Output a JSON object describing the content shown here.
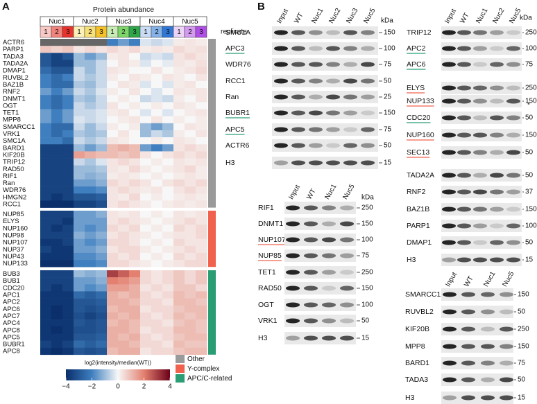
{
  "panel_labels": [
    "A",
    "B"
  ],
  "chart_data": {
    "type": "heatmap",
    "title": "Protein abundance",
    "x_groups": [
      {
        "name": "Nuc1",
        "colors": [
          "#f8c9c4",
          "#f2837c",
          "#e8322c"
        ]
      },
      {
        "name": "Nuc2",
        "colors": [
          "#fbf1b8",
          "#f7e07a",
          "#f4c12b"
        ]
      },
      {
        "name": "Nuc3",
        "colors": [
          "#c8ecb4",
          "#7ed66a",
          "#2ea64a"
        ]
      },
      {
        "name": "Nuc4",
        "colors": [
          "#c9dcf4",
          "#84b2e8",
          "#2f78d8"
        ]
      },
      {
        "name": "Nuc5",
        "colors": [
          "#ecd4f7",
          "#d39af0",
          "#b14ee8"
        ]
      }
    ],
    "replicates": [
      1,
      2,
      3
    ],
    "replicate_label": "replicate",
    "na_color": "#666666",
    "row_groups": [
      {
        "name": "Other",
        "color": "#9a9a9a",
        "rows": [
          "ACTR6",
          "PARP1",
          "TADA3",
          "TADA2A",
          "DMAP1",
          "RUVBL2",
          "BAZ1B",
          "RNF2",
          "DNMT1",
          "OGT",
          "TET1",
          "MPP8",
          "SMARCC1",
          "VRK1",
          "SMC1A",
          "BARD1",
          "KIF20B",
          "TRIP12",
          "RAD50",
          "RIF1",
          "Ran",
          "WDR76",
          "HMGN2",
          "RCC1"
        ],
        "values": [
          [
            null,
            null,
            null,
            null,
            null,
            null,
            -2,
            -1.5,
            -2,
            -0.3,
            -0.5,
            -0.3,
            0.2,
            0.3,
            0.2
          ],
          [
            0.8,
            0.6,
            0.8,
            0.3,
            0.5,
            0.3,
            0.5,
            0.3,
            0.5,
            0.2,
            0.3,
            0.2,
            0.5,
            0.3,
            0.4
          ],
          [
            -3,
            -3.5,
            -3,
            -1,
            -1.5,
            -1,
            0.2,
            0.3,
            0,
            -0.5,
            -0.3,
            -0.5,
            0.3,
            0.5,
            0.3
          ],
          [
            -3,
            -3.5,
            -3.5,
            -1,
            -1,
            -0.5,
            0,
            0.3,
            0.2,
            -0.3,
            0,
            -0.2,
            0.3,
            0.2,
            0.4
          ],
          [
            -2.5,
            -3,
            -3,
            -0.5,
            -1,
            -0.5,
            0.3,
            0.2,
            0,
            0,
            0.3,
            0,
            0.2,
            0.3,
            0.5
          ],
          [
            -2,
            -2.5,
            -2,
            -0.5,
            -0.8,
            -0.5,
            0.2,
            0,
            0.3,
            0.2,
            0,
            0.3,
            0.2,
            0,
            0.3
          ],
          [
            -2,
            -2.5,
            -2.5,
            -0.8,
            -1,
            -0.5,
            0,
            0.3,
            0.2,
            -0.3,
            0,
            -0.3,
            0.2,
            0.3,
            0
          ],
          [
            -1.5,
            -2,
            -1.5,
            -0.5,
            -0.8,
            -0.3,
            0.2,
            0,
            0.3,
            0,
            -0.3,
            0,
            0.3,
            0.2,
            0.3
          ],
          [
            -2,
            -2.5,
            -2,
            -0.8,
            -1,
            -0.5,
            0,
            0.2,
            0,
            -0.5,
            -0.3,
            -0.5,
            0.2,
            0,
            0.3
          ],
          [
            -2,
            -2.5,
            -2,
            -0.5,
            -0.8,
            -0.5,
            0.3,
            0,
            0.2,
            0,
            0.2,
            0,
            0.3,
            0.2,
            0
          ],
          [
            -1.5,
            -2,
            -1.5,
            -0.5,
            -0.5,
            -0.3,
            0.2,
            0.3,
            0,
            -0.3,
            0,
            -0.3,
            0,
            0.2,
            0.3
          ],
          [
            -1.5,
            -2,
            -1.5,
            -0.3,
            -0.5,
            -0.3,
            0,
            0.2,
            0.3,
            0,
            0.3,
            0,
            0.2,
            0,
            0.2
          ],
          [
            -2,
            -2.5,
            -2.5,
            -0.5,
            -1,
            -0.5,
            0.2,
            0,
            0.2,
            -1,
            -1.5,
            -1,
            0,
            0.3,
            0.2
          ],
          [
            -2,
            -2.5,
            -2,
            -0.8,
            -1,
            -0.8,
            0,
            0.3,
            0,
            -1,
            -0.5,
            -0.8,
            0.2,
            0,
            0.3
          ],
          [
            -2,
            -2,
            -2.5,
            -0.5,
            -0.8,
            -0.5,
            0.3,
            0.2,
            0,
            0,
            0.2,
            0,
            0.3,
            0.2,
            0
          ],
          [
            -3.5,
            -3.5,
            -3.5,
            -1,
            -1.5,
            -1,
            1,
            1.2,
            1,
            -1.5,
            -2,
            -1.5,
            0.3,
            0.5,
            0.3
          ],
          [
            -3.5,
            -3.5,
            -3.5,
            1.5,
            1.2,
            1,
            1,
            0.8,
            1,
            0.3,
            0,
            0.3,
            0.5,
            0.3,
            0.5
          ],
          [
            -3.5,
            -3.5,
            -3.5,
            -0.5,
            -0.8,
            -0.3,
            0.3,
            0.5,
            0.3,
            0,
            0.2,
            0,
            0.3,
            0.2,
            0.3
          ],
          [
            -3.5,
            -3.5,
            -3.5,
            -1,
            -1,
            -0.8,
            0.3,
            0.2,
            0.5,
            0.2,
            0,
            0.2,
            0.3,
            0.5,
            0.2
          ],
          [
            -3.5,
            -3.5,
            -3.5,
            -1,
            -1.2,
            -1,
            0.2,
            0.3,
            0.2,
            0,
            0.2,
            0,
            0.2,
            0.3,
            0.2
          ],
          [
            -3.5,
            -3.5,
            -3.5,
            -1.5,
            -1.5,
            -1.2,
            0.5,
            0.3,
            0.5,
            0.3,
            0,
            0.3,
            0.5,
            0.3,
            0.5
          ],
          [
            -3.5,
            -3.5,
            -3.5,
            -2,
            -2,
            -1.8,
            0.3,
            0.5,
            0.3,
            0.2,
            0.3,
            0,
            0.3,
            0.5,
            0.3
          ],
          [
            -3.5,
            -3.8,
            -3.5,
            -3,
            -3,
            -2.8,
            0.3,
            0.2,
            0.5,
            0,
            0.2,
            0,
            0.2,
            0.3,
            0.2
          ],
          [
            -4,
            -4,
            -4,
            -3.5,
            -3.5,
            -3.2,
            0.3,
            0.5,
            0.3,
            0.2,
            0,
            0.2,
            0.3,
            0.2,
            0.3
          ]
        ]
      },
      {
        "name": "Y-complex",
        "color": "#f0624d",
        "rows": [
          "NUP85",
          "ELYS",
          "NUP160",
          "NUP98",
          "NUP107",
          "NUP37",
          "NUP43",
          "NUP133"
        ],
        "values": [
          [
            -3.5,
            -3.5,
            -3.5,
            -1.5,
            -1.5,
            -1.2,
            0.3,
            0.2,
            0.3,
            0,
            0.2,
            0,
            0.3,
            0.2,
            0.3
          ],
          [
            -3.5,
            -3.5,
            -3.8,
            -1.5,
            -1.5,
            -1.5,
            0.3,
            0.5,
            0.3,
            0.2,
            0,
            0.2,
            0.3,
            0.5,
            0.3
          ],
          [
            -3.5,
            -3.8,
            -3.5,
            -1.5,
            -1.8,
            -1.5,
            0.5,
            0.3,
            0.5,
            0,
            0.2,
            0,
            0.5,
            0.3,
            0.5
          ],
          [
            -3.5,
            -3.5,
            -3.5,
            -1.2,
            -1.5,
            -1.2,
            0.3,
            0.5,
            0.3,
            0.2,
            0,
            0.2,
            0.3,
            0.3,
            0.5
          ],
          [
            -3.8,
            -3.8,
            -3.5,
            -1.5,
            -1.8,
            -1.5,
            0.5,
            0.5,
            0.3,
            0,
            0.2,
            0,
            0.5,
            0.3,
            0.3
          ],
          [
            -3.5,
            -3.8,
            -3.8,
            -1.5,
            -1.5,
            -1.2,
            0.3,
            0.5,
            0.5,
            0.2,
            0,
            0.2,
            0.3,
            0.5,
            0.3
          ],
          [
            -3.8,
            -3.8,
            -3.8,
            -1.8,
            -1.8,
            -1.5,
            0.5,
            0.3,
            0.5,
            0,
            0.2,
            0,
            0.5,
            0.3,
            0.5
          ],
          [
            -4,
            -4,
            -4,
            -2,
            -2,
            -1.8,
            0.5,
            0.5,
            0.3,
            0.2,
            0,
            0.2,
            0.3,
            0.5,
            0.5
          ]
        ]
      },
      {
        "name": "APC/C-related",
        "color": "#2a9d74",
        "rows": [
          "BUB3",
          "BUB1",
          "CDC20",
          "APC1",
          "APC2",
          "APC6",
          "APC7",
          "APC4",
          "APC8",
          "APC5",
          "BUBR1",
          "APC8"
        ],
        "values": [
          [
            -3.5,
            -3.5,
            -3.5,
            -1,
            -1.2,
            -1,
            3,
            2.5,
            2,
            0.5,
            0.3,
            0.5,
            0.8,
            0.5,
            0.8
          ],
          [
            -3.5,
            -3.5,
            -3.5,
            -1.5,
            -1.5,
            -1.2,
            2,
            1.8,
            1.5,
            0.5,
            0.3,
            0.5,
            0.8,
            0.5,
            0.8
          ],
          [
            -3.5,
            -3.8,
            -3.5,
            -1.5,
            -1.8,
            -1.5,
            1.5,
            1.5,
            1.2,
            0.3,
            0.5,
            0.3,
            0.8,
            0.8,
            0.5
          ],
          [
            -3.8,
            -3.8,
            -3.8,
            -2.5,
            -2.8,
            -2.5,
            1.2,
            1,
            1.2,
            0.5,
            0.3,
            0.5,
            1,
            0.8,
            1
          ],
          [
            -3.8,
            -3.8,
            -3.8,
            -3,
            -3,
            -2.8,
            1.2,
            1.2,
            1,
            0.5,
            0.5,
            0.3,
            1,
            1,
            0.8
          ],
          [
            -3.8,
            -4,
            -3.8,
            -3,
            -3.2,
            -3,
            1,
            1.2,
            1.2,
            0.3,
            0.5,
            0.5,
            0.8,
            1,
            1
          ],
          [
            -3.8,
            -4,
            -3.8,
            -3.2,
            -3.5,
            -3.2,
            1.2,
            1,
            1.2,
            0.5,
            0.3,
            0.5,
            1,
            0.8,
            1
          ],
          [
            -3.8,
            -3.8,
            -3.8,
            -3,
            -3.2,
            -3,
            1,
            1.2,
            1,
            0.5,
            0.5,
            0.3,
            0.8,
            1,
            0.8
          ],
          [
            -3.8,
            -4,
            -3.8,
            -3.2,
            -3.2,
            -3,
            1.2,
            1.2,
            1,
            0.3,
            0.5,
            0.5,
            1,
            1,
            0.8
          ],
          [
            -3.8,
            -3.8,
            -3.8,
            -3,
            -3,
            -2.8,
            1.2,
            1,
            1.2,
            0.5,
            0.3,
            0.5,
            0.8,
            1,
            1
          ],
          [
            -3.5,
            -3.8,
            -3.5,
            -2.5,
            -2.8,
            -2.5,
            1.2,
            1.2,
            1,
            0.5,
            0.5,
            0.3,
            1,
            0.8,
            0.8
          ],
          [
            -3.8,
            -4,
            -3.8,
            -3,
            -3.2,
            -3,
            1,
            1.2,
            1.2,
            0.3,
            0.5,
            0.5,
            0.8,
            1,
            1
          ]
        ]
      }
    ],
    "legend_title": "log2(intensity/median(WT))",
    "zlim": [
      -4,
      4
    ],
    "zticks": [
      {
        "value": -4,
        "label": "−4"
      },
      {
        "value": -2,
        "label": "−2"
      },
      0,
      2,
      4
    ],
    "colorscale": [
      "#0a2f6b",
      "#3f7fbf",
      "#f7f7f7",
      "#e3806f",
      "#6b0019"
    ]
  },
  "blots": [
    {
      "lanes": [
        "Input",
        "WT",
        "Nuc1",
        "Nuc2",
        "Nuc3",
        "Nuc5"
      ],
      "unit": "kDa",
      "rows": [
        {
          "protein": "SMC1A",
          "marker": 150
        },
        {
          "protein": "APC3",
          "marker": 100,
          "underline": "#2a9d74"
        },
        {
          "protein": "WDR76",
          "marker": 75
        },
        {
          "protein": "RCC1",
          "marker": 50
        },
        {
          "protein": "Ran",
          "marker": 25
        },
        {
          "protein": "BUBR1",
          "marker": 150,
          "underline": "#2a9d74"
        },
        {
          "protein": "APC5",
          "marker": 75,
          "underline": "#2a9d74"
        },
        {
          "protein": "ACTR6",
          "marker": 50
        },
        {
          "protein": "H3",
          "marker": 15
        }
      ]
    },
    {
      "lanes": [
        "Input",
        "WT",
        "Nuc1",
        "Nuc5"
      ],
      "unit": "kDa",
      "rows": [
        {
          "protein": "RIF1",
          "marker": 250
        },
        {
          "protein": "DNMT1",
          "marker": 150
        },
        {
          "protein": "NUP107",
          "marker": 100,
          "underline": "#f0624d"
        },
        {
          "protein": "NUP85",
          "marker": 75,
          "underline": "#f0624d"
        },
        {
          "protein": "TET1",
          "marker": 250
        },
        {
          "protein": "RAD50",
          "marker": 150
        },
        {
          "protein": "OGT",
          "marker": 100
        },
        {
          "protein": "VRK1",
          "marker": 50
        },
        {
          "protein": "H3",
          "marker": 15
        }
      ]
    },
    {
      "lanes": [
        "Input",
        "WT",
        "Nuc1",
        "Nuc2",
        "Nuc5"
      ],
      "unit": "kDa",
      "rows": [
        {
          "protein": "TRIP12",
          "marker": 250
        },
        {
          "protein": "APC2",
          "marker": 100,
          "underline": "#2a9d74"
        },
        {
          "protein": "APC6",
          "marker": 75,
          "underline": "#2a9d74"
        },
        {
          "protein": "ELYS",
          "marker": 250,
          "underline": "#f0624d"
        },
        {
          "protein": "NUP133",
          "marker": 150,
          "underline": "#f0624d",
          "note": "*"
        },
        {
          "protein": "CDC20",
          "marker": 50,
          "underline": "#2a9d74"
        },
        {
          "protein": "NUP160",
          "marker": 150,
          "underline": "#f0624d"
        },
        {
          "protein": "SEC13",
          "marker": 50,
          "underline": "#f0624d"
        },
        {
          "protein": "TADA2A",
          "marker": 50
        },
        {
          "protein": "RNF2",
          "marker": 37
        },
        {
          "protein": "BAZ1B",
          "marker": 150
        },
        {
          "protein": "PARP1",
          "marker": 100
        },
        {
          "protein": "DMAP1",
          "marker": 50
        },
        {
          "protein": "H3",
          "marker": 15
        }
      ]
    },
    {
      "lanes": [
        "Input",
        "WT",
        "Nuc1",
        "Nuc5"
      ],
      "rows": [
        {
          "protein": "SMARCC1",
          "marker": 150
        },
        {
          "protein": "RUVBL2",
          "marker": 50
        },
        {
          "protein": "KIF20B",
          "marker": 250
        },
        {
          "protein": "MPP8",
          "marker": 150
        },
        {
          "protein": "BARD1",
          "marker": 75
        },
        {
          "protein": "TADA3",
          "marker": 50
        },
        {
          "protein": "H3",
          "marker": 15
        }
      ]
    }
  ]
}
